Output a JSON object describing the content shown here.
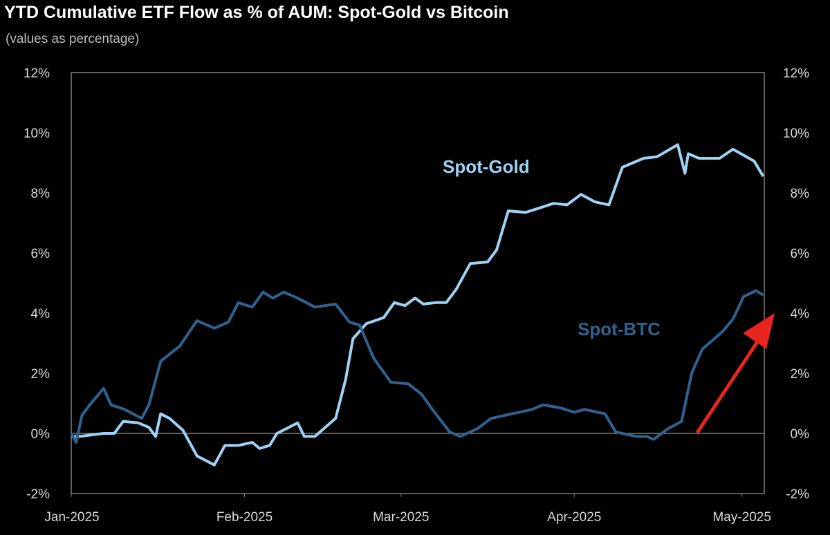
{
  "chart_data": {
    "type": "line",
    "title": "YTD Cumulative ETF Flow as % of AUM: Spot-Gold vs Bitcoin",
    "subtitle": "(values as percentage)",
    "xlim": [
      0,
      124
    ],
    "xticks": [
      {
        "value": 0,
        "label": "Jan-2025"
      },
      {
        "value": 31,
        "label": "Feb-2025"
      },
      {
        "value": 59,
        "label": "Mar-2025"
      },
      {
        "value": 90,
        "label": "Apr-2025"
      },
      {
        "value": 120,
        "label": "May-2025"
      }
    ],
    "ylim": [
      -2,
      12
    ],
    "yticks": [
      {
        "value": -2,
        "label": "-2%"
      },
      {
        "value": 0,
        "label": "0%"
      },
      {
        "value": 2,
        "label": "2%"
      },
      {
        "value": 4,
        "label": "4%"
      },
      {
        "value": 6,
        "label": "6%"
      },
      {
        "value": 8,
        "label": "8%"
      },
      {
        "value": 10,
        "label": "10%"
      },
      {
        "value": 12,
        "label": "12%"
      }
    ],
    "y2lim": [
      -2,
      12
    ],
    "y2ticks": [
      {
        "value": -2,
        "label": "-2%"
      },
      {
        "value": 0,
        "label": "0%"
      },
      {
        "value": 2,
        "label": "2%"
      },
      {
        "value": 4,
        "label": "4%"
      },
      {
        "value": 6,
        "label": "6%"
      },
      {
        "value": 8,
        "label": "8%"
      },
      {
        "value": 10,
        "label": "10%"
      },
      {
        "value": 12,
        "label": "12%"
      }
    ],
    "grid": false,
    "series": [
      {
        "name": "Spot-Gold",
        "color": "#9fd3f5",
        "x": [
          0,
          1.5,
          5.8,
          7.7,
          9.3,
          12.0,
          13.9,
          15.1,
          16.0,
          17.6,
          20.0,
          22.5,
          25.6,
          27.5,
          29.9,
          32.4,
          33.7,
          35.5,
          36.8,
          40.5,
          41.7,
          43.6,
          47.3,
          49.1,
          50.4,
          52.8,
          55.9,
          57.8,
          59.7,
          61.5,
          63.0,
          65.2,
          67.1,
          68.9,
          71.4,
          74.5,
          76.1,
          78.2,
          81.3,
          83.8,
          86.3,
          88.7,
          91.2,
          93.7,
          96.2,
          98.6,
          102.4,
          104.8,
          108.5,
          109.8,
          110.4,
          112.3,
          116.0,
          118.4,
          122.2,
          123.8
        ],
        "values": [
          -0.1,
          -0.1,
          0,
          0,
          0.4,
          0.35,
          0.2,
          -0.1,
          0.65,
          0.5,
          0.1,
          -0.75,
          -1.05,
          -0.4,
          -0.4,
          -0.3,
          -0.5,
          -0.4,
          0,
          0.35,
          -0.1,
          -0.1,
          0.5,
          1.8,
          3.15,
          3.65,
          3.85,
          4.35,
          4.25,
          4.5,
          4.3,
          4.35,
          4.35,
          4.8,
          5.65,
          5.7,
          6.1,
          7.4,
          7.35,
          7.5,
          7.65,
          7.6,
          7.95,
          7.7,
          7.6,
          8.85,
          9.15,
          9.2,
          9.6,
          8.65,
          9.3,
          9.15,
          9.15,
          9.45,
          9.05,
          8.55
        ]
      },
      {
        "name": "Spot-BTC",
        "color": "#2e6390",
        "x": [
          0,
          0.9,
          1.9,
          3.3,
          5.8,
          7.1,
          9.5,
          12.6,
          13.9,
          16.0,
          19.4,
          22.5,
          25.6,
          28.1,
          29.9,
          32.4,
          34.3,
          36.1,
          38.0,
          40.5,
          43.6,
          47.3,
          49.8,
          51.6,
          54.1,
          57.2,
          60.3,
          62.7,
          64.6,
          67.7,
          69.6,
          72.6,
          75.1,
          78.8,
          82.5,
          84.4,
          87.5,
          90.0,
          91.8,
          95.5,
          97.4,
          101.1,
          103.0,
          104.2,
          106.7,
          109.2,
          111.0,
          112.9,
          116.6,
          118.4,
          120.3,
          122.5,
          123.8
        ],
        "values": [
          0,
          -0.3,
          0.6,
          0.95,
          1.5,
          0.95,
          0.8,
          0.5,
          0.95,
          2.4,
          2.9,
          3.75,
          3.5,
          3.7,
          4.35,
          4.2,
          4.7,
          4.5,
          4.7,
          4.5,
          4.2,
          4.3,
          3.7,
          3.6,
          2.5,
          1.7,
          1.65,
          1.3,
          0.8,
          0.05,
          -0.1,
          0.15,
          0.5,
          0.65,
          0.8,
          0.95,
          0.85,
          0.7,
          0.8,
          0.65,
          0.05,
          -0.1,
          -0.1,
          -0.2,
          0.15,
          0.4,
          2.0,
          2.8,
          3.4,
          3.8,
          4.55,
          4.75,
          4.6
        ]
      }
    ]
  }
}
